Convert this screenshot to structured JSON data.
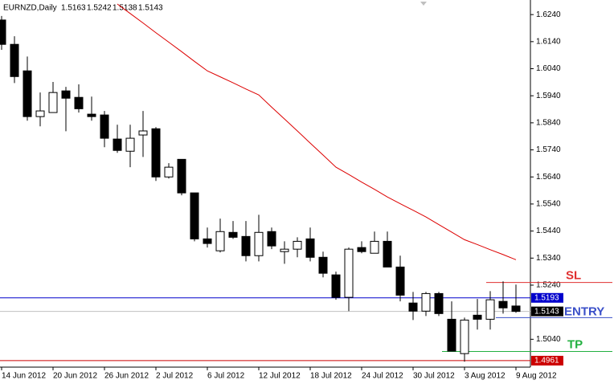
{
  "chart_data": {
    "type": "candlestick",
    "title": "EURNZD,Daily",
    "categories": [
      "14 Jun 2012",
      null,
      null,
      null,
      "20 Jun 2012",
      null,
      null,
      null,
      "26 Jun 2012",
      null,
      null,
      null,
      "2 Jul 2012",
      null,
      null,
      null,
      "6 Jul 2012",
      null,
      null,
      null,
      "12 Jul 2012",
      null,
      null,
      null,
      "18 Jul 2012",
      null,
      null,
      null,
      "24 Jul 2012",
      null,
      null,
      null,
      "30 Jul 2012",
      null,
      null,
      null,
      "3 Aug 2012",
      null,
      null,
      null,
      "9 Aug 2012"
    ],
    "open": [
      1.622,
      1.613,
      1.6032,
      1.5863,
      1.5878,
      1.5958,
      1.5934,
      1.5872,
      1.5869,
      1.578,
      1.5735,
      1.5795,
      1.5818,
      1.564,
      1.5705,
      1.5581,
      1.5411,
      1.5367,
      1.5435,
      1.542,
      1.5349,
      1.5438,
      1.5364,
      1.5373,
      1.5411,
      1.5343,
      1.5278,
      1.5195,
      1.5379,
      1.5358,
      1.5402,
      1.5307,
      1.5174,
      1.5144,
      1.5209,
      1.5114,
      1.4987,
      1.5129,
      1.5114,
      1.518,
      1.5163
    ],
    "high": [
      1.6235,
      1.616,
      1.6085,
      1.5952,
      1.5991,
      1.5973,
      1.5982,
      1.5937,
      1.5884,
      1.5833,
      1.5833,
      1.5884,
      1.5824,
      1.5691,
      1.5705,
      1.5581,
      1.5453,
      1.5486,
      1.5477,
      1.5477,
      1.55,
      1.5453,
      1.5402,
      1.5417,
      1.5453,
      1.5364,
      1.529,
      1.5379,
      1.5402,
      1.5438,
      1.5438,
      1.5349,
      1.5215,
      1.5215,
      1.5215,
      1.518,
      1.512,
      1.5189,
      1.5218,
      1.5254,
      1.5242
    ],
    "low": [
      1.611,
      1.5987,
      1.5848,
      1.5827,
      1.5878,
      1.5809,
      1.5878,
      1.5848,
      1.575,
      1.5729,
      1.5676,
      1.5714,
      1.5625,
      1.5634,
      1.5572,
      1.5402,
      1.5379,
      1.5361,
      1.5411,
      1.5328,
      1.5328,
      1.5373,
      1.5319,
      1.5343,
      1.5328,
      1.5269,
      1.5186,
      1.5144,
      1.5358,
      1.5358,
      1.5307,
      1.518,
      1.5111,
      1.5126,
      1.5126,
      1.4996,
      1.4957,
      1.5076,
      1.5076,
      1.5135,
      1.5138
    ],
    "close": [
      1.613,
      1.6011,
      1.5863,
      1.5884,
      1.5952,
      1.5931,
      1.5892,
      1.5863,
      1.5783,
      1.5738,
      1.5783,
      1.581,
      1.564,
      1.5676,
      1.5581,
      1.5411,
      1.5394,
      1.5438,
      1.5417,
      1.5349,
      1.5435,
      1.5385,
      1.5373,
      1.5402,
      1.5343,
      1.5284,
      1.5195,
      1.5373,
      1.5364,
      1.5402,
      1.5307,
      1.5203,
      1.5144,
      1.5209,
      1.5135,
      1.4996,
      1.5111,
      1.5114,
      1.5186,
      1.5156,
      1.5143
    ],
    "up_color": "#ffffff",
    "down_color": "#000000",
    "ma_color": "#dd0000",
    "ma_values": [
      null,
      null,
      null,
      null,
      null,
      null,
      null,
      null,
      null,
      1.6279,
      1.6244,
      1.6209,
      1.6173,
      1.6138,
      1.6103,
      1.6067,
      1.6032,
      1.601,
      1.5988,
      1.5965,
      1.5943,
      1.5898,
      1.5854,
      1.581,
      1.5765,
      1.5721,
      1.5676,
      1.5649,
      1.5621,
      1.5594,
      1.5566,
      1.5541,
      1.5517,
      1.5492,
      1.5464,
      1.5436,
      1.5408,
      1.539,
      1.5371,
      1.5353,
      1.5334
    ],
    "hlines": [
      {
        "value": 1.5193,
        "color": "#0000cc"
      },
      {
        "value": 1.4961,
        "color": "#cc0000"
      }
    ],
    "current_price_color": "#000000",
    "levels": [
      {
        "label": "SL",
        "value": 1.525,
        "color": "#e03030"
      },
      {
        "label": "ENTRY",
        "value": 1.512,
        "color": "#3a4fc8"
      },
      {
        "label": "TP",
        "value": 1.4995,
        "color": "#22b040"
      }
    ],
    "ylim": [
      1.494,
      1.6288
    ],
    "yticks": [
      {
        "value": 1.624,
        "label": "1.6240"
      },
      {
        "value": 1.614,
        "label": "1.6140"
      },
      {
        "value": 1.604,
        "label": "1.6040"
      },
      {
        "value": 1.594,
        "label": "1.5940"
      },
      {
        "value": 1.584,
        "label": "1.5840"
      },
      {
        "value": 1.574,
        "label": "1.5740"
      },
      {
        "value": 1.564,
        "label": "1.5640"
      },
      {
        "value": 1.554,
        "label": "1.5540"
      },
      {
        "value": 1.544,
        "label": "1.5440"
      },
      {
        "value": 1.534,
        "label": "1.5340"
      },
      {
        "value": 1.524,
        "label": "1.5240"
      },
      {
        "value": 1.504,
        "label": "1.5040"
      }
    ]
  }
}
